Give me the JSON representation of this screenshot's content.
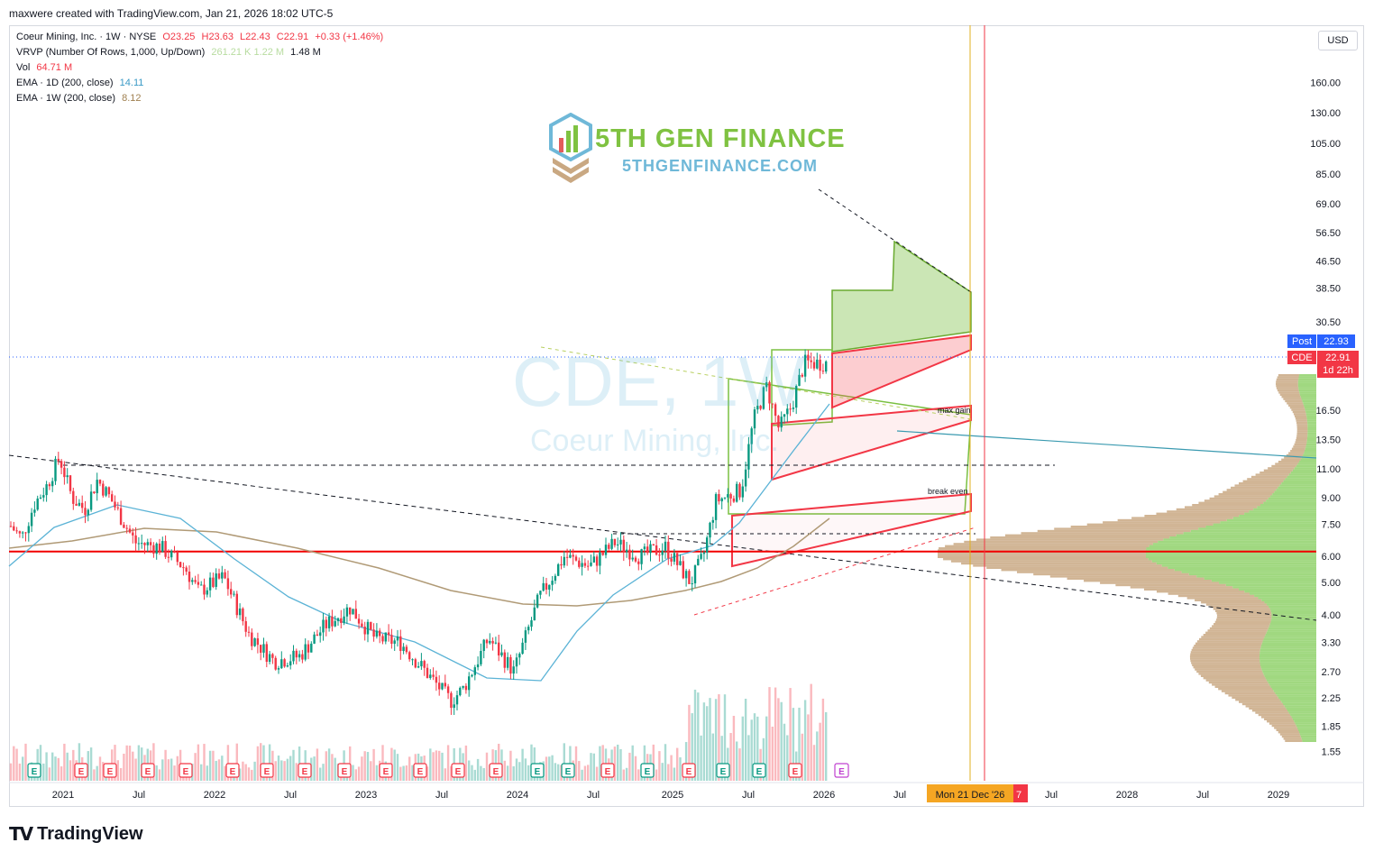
{
  "header": "maxwere created with TradingView.com, Jan 21, 2026 18:02 UTC-5",
  "legend": {
    "symbol": "Coeur Mining, Inc. · 1W · NYSE",
    "o": "O23.25",
    "h": "H23.63",
    "l": "L22.43",
    "c": "C22.91",
    "change": "+0.33 (+1.46%)",
    "vrvp": "VRVP (Number Of Rows, 1,000, Up/Down)",
    "vrvp_vals": "261.21 K  1.22 M",
    "vrvp_total": "1.48 M",
    "vol": "Vol",
    "vol_val": "64.71 M",
    "ema1": "EMA · 1D (200, close)",
    "ema1_val": "14.11",
    "ema2": "EMA · 1W (200, close)",
    "ema2_val": "8.12"
  },
  "currency": "USD",
  "branding": {
    "name": "5TH GEN FINANCE",
    "url": "5THGENFINANCE.COM"
  },
  "watermark": {
    "ticker": "CDE, 1W",
    "company": "Coeur Mining, Inc."
  },
  "footer_logo": "TradingView",
  "annotations": {
    "max_gain": "max gain",
    "break_even": "break even"
  },
  "price_tags": {
    "post_label": "Post",
    "post_value": "22.93",
    "sym_label": "CDE",
    "sym_value": "22.91",
    "countdown": "1d 22h"
  },
  "date_tag": "Mon 21 Dec '26",
  "date_tag_tail": "7",
  "colors": {
    "up": "#089981",
    "down": "#f23645",
    "ema1d": "#5bb3d6",
    "ema1w": "#b09a76",
    "support": "#f20000",
    "profile_up": "#8fd16a",
    "profile_down": "#c9a882"
  },
  "chart_data": {
    "type": "candlestick",
    "y_scale": "log",
    "y_ticks": [
      "160.00",
      "130.00",
      "105.00",
      "85.00",
      "69.00",
      "56.50",
      "46.50",
      "38.50",
      "30.50",
      "16.50",
      "13.50",
      "11.00",
      "9.00",
      "7.50",
      "6.00",
      "5.00",
      "4.00",
      "3.30",
      "2.70",
      "2.25",
      "1.85",
      "1.55"
    ],
    "x_ticks": [
      "2021",
      "Jul",
      "2022",
      "Jul",
      "2023",
      "Jul",
      "2024",
      "Jul",
      "2025",
      "Jul",
      "2026",
      "Jul",
      "Jul",
      "2028",
      "Jul",
      "2029"
    ],
    "support_level": 6.2,
    "last_close": 22.91,
    "price_path": [
      [
        "2020-10",
        7.5
      ],
      [
        "2020-11",
        6.8
      ],
      [
        "2020-12",
        8.6
      ],
      [
        "2021-01",
        9.8
      ],
      [
        "2021-02",
        11.9
      ],
      [
        "2021-03",
        9.0
      ],
      [
        "2021-04",
        8.3
      ],
      [
        "2021-05",
        10.2
      ],
      [
        "2021-06",
        9.0
      ],
      [
        "2021-08",
        6.6
      ],
      [
        "2021-10",
        6.4
      ],
      [
        "2021-12",
        5.5
      ],
      [
        "2022-01",
        4.7
      ],
      [
        "2022-03",
        5.2
      ],
      [
        "2022-05",
        3.5
      ],
      [
        "2022-07",
        2.9
      ],
      [
        "2022-09",
        3.0
      ],
      [
        "2022-11",
        3.7
      ],
      [
        "2023-01",
        4.2
      ],
      [
        "2023-03",
        3.4
      ],
      [
        "2023-05",
        3.3
      ],
      [
        "2023-07",
        2.7
      ],
      [
        "2023-09",
        2.2
      ],
      [
        "2023-10",
        2.4
      ],
      [
        "2023-12",
        3.4
      ],
      [
        "2024-02",
        2.7
      ],
      [
        "2024-04",
        4.5
      ],
      [
        "2024-06",
        6.0
      ],
      [
        "2024-08",
        5.6
      ],
      [
        "2024-10",
        6.6
      ],
      [
        "2024-12",
        6.0
      ],
      [
        "2025-02",
        6.4
      ],
      [
        "2025-04",
        5.0
      ],
      [
        "2025-05",
        6.0
      ],
      [
        "2025-06",
        8.8
      ],
      [
        "2025-08",
        9.5
      ],
      [
        "2025-09",
        15.5
      ],
      [
        "2025-10",
        19.5
      ],
      [
        "2025-11",
        14.5
      ],
      [
        "2025-12",
        17.0
      ],
      [
        "2026-01",
        22.91
      ]
    ],
    "ema_1d_200": 14.11,
    "ema_1w_200": 8.12,
    "volume_last": "64.71 M",
    "earnings_markers": 24
  }
}
